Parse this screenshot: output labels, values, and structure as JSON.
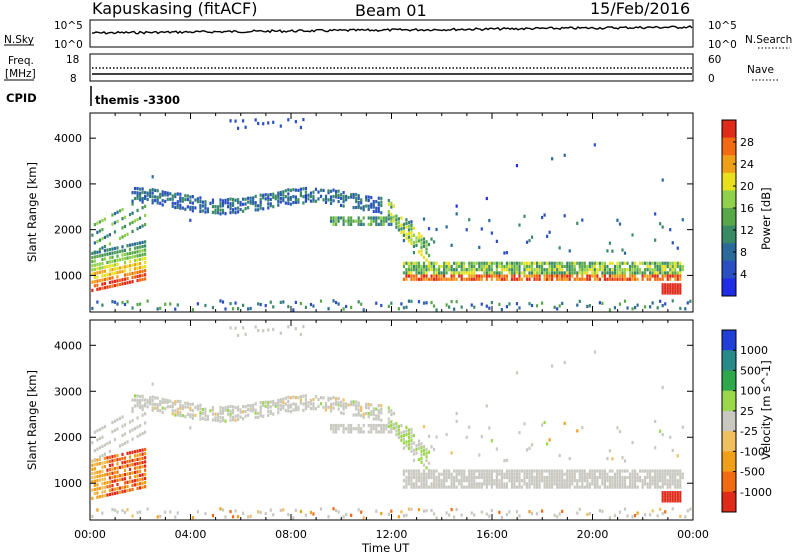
{
  "header": {
    "radar": "Kapuskasing (fitACF)",
    "beam": "Beam 01",
    "date": "15/Feb/2016"
  },
  "panels": {
    "sky_search": {
      "left_label": "N.Sky",
      "left_ticks": [
        "10^5",
        "10^0"
      ],
      "right_ticks": [
        "10^5",
        "10^0"
      ],
      "right_label": "N.Search"
    },
    "freq_nave": {
      "left_label_1": "Freq.",
      "left_label_2": "[MHz]",
      "left_ticks": [
        "18",
        "8"
      ],
      "right_ticks": [
        "60",
        "0"
      ],
      "right_label": "Nave"
    },
    "cpid": {
      "label": "CPID",
      "program": "themis -3300"
    }
  },
  "chart_data": [
    {
      "type": "heatmap",
      "name": "power",
      "ylabel": "Slant Range [km]",
      "yticks": [
        1000,
        2000,
        3000,
        4000
      ],
      "ylim": [
        200,
        4550
      ],
      "xlim_hours": [
        0,
        24
      ],
      "colorbar": {
        "label": "Power [dB]",
        "ticks": [
          "4",
          "8",
          "12",
          "16",
          "20",
          "24",
          "28"
        ],
        "range": [
          0,
          32
        ],
        "colors": [
          "#1f2ee6",
          "#2a4fc2",
          "#2b6a9a",
          "#3a8a66",
          "#58a84a",
          "#8fd14a",
          "#e8e01c",
          "#f0a018",
          "#f26a12",
          "#e02a1a"
        ]
      }
    },
    {
      "type": "heatmap",
      "name": "velocity",
      "ylabel": "Slant Range [km]",
      "yticks": [
        1000,
        2000,
        3000,
        4000
      ],
      "ylim": [
        200,
        4550
      ],
      "xlim_hours": [
        0,
        24
      ],
      "colorbar": {
        "label": "Velocity [m s^-1]",
        "ticks": [
          "1000",
          "500",
          "100",
          "25",
          "-25",
          "-100",
          "-500",
          "-1000"
        ],
        "colors": [
          "#1f3fd6",
          "#2a8a8a",
          "#2ea84a",
          "#9ad84a",
          "#c8c8c0",
          "#f0c060",
          "#f0a018",
          "#f26a12",
          "#e02a1a"
        ]
      }
    }
  ],
  "xaxis": {
    "ticks": [
      "00:00",
      "04:00",
      "08:00",
      "12:00",
      "16:00",
      "20:00",
      "00:00"
    ],
    "label": "Time UT"
  }
}
